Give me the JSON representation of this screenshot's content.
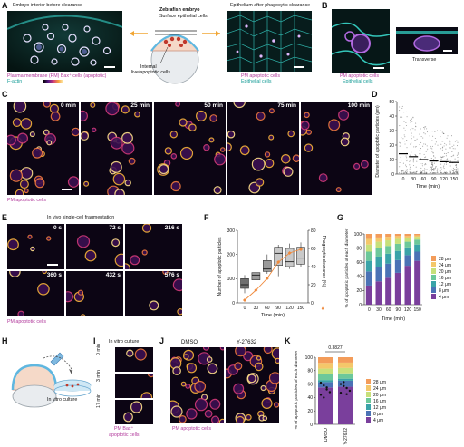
{
  "panels": {
    "A": {
      "label": "A",
      "left_title": "Embryo interior before clearance",
      "left_caption_1": "Plasma membrane (PM) Bax⁺ cells (apoptotic)",
      "left_caption_2": "F-actin",
      "center_title": "Zebrafish embryo",
      "surface_label": "Surface epithelial cells",
      "internal_label_1": "Internal",
      "internal_label_2": "live/apoptotic cells",
      "right_title": "Epithelium after phagocytic clearance",
      "right_caption_1": "PM apoptotic cells",
      "right_caption_2": "Epithelial cells"
    },
    "B": {
      "label": "B",
      "caption_1": "PM apoptotic cells",
      "caption_2": "Epithelial cells",
      "transverse_label": "Transverse"
    },
    "C": {
      "label": "C",
      "times": [
        "0 min",
        "25 min",
        "50 min",
        "75 min",
        "100 min"
      ],
      "caption": "PM apoptotic cells"
    },
    "D": {
      "label": "D"
    },
    "E": {
      "label": "E",
      "title": "In vivo single-cell fragmentation",
      "times": [
        "0 s",
        "72 s",
        "216 s",
        "360 s",
        "432 s",
        "576 s"
      ],
      "caption": "PM apoptotic cells"
    },
    "F": {
      "label": "F",
      "right_axis_marker": "♦"
    },
    "G": {
      "label": "G"
    },
    "H": {
      "label": "H",
      "caption": "In vitro culture"
    },
    "I": {
      "label": "I",
      "title": "In vitro culture",
      "times": [
        "0 min",
        "3 min",
        "17 min"
      ],
      "caption_1": "PM Bax⁺",
      "caption_2": "apoptotic cells"
    },
    "J": {
      "label": "J",
      "conditions": [
        "DMSO",
        "Y-27632"
      ],
      "caption": "PM apoptotic cells"
    },
    "K": {
      "label": "K",
      "pvalue": "0.3827"
    }
  },
  "chart_data": [
    {
      "panel": "D",
      "type": "scatter",
      "xlabel": "Time (min)",
      "ylabel": "Diameter of apoptotic particles (μm)",
      "x_ticks": [
        "0",
        "30",
        "60",
        "90",
        "120",
        "150"
      ],
      "y_ticks": [
        "0",
        "10",
        "20",
        "30",
        "40",
        "50"
      ],
      "ylim": [
        0,
        50
      ],
      "medians": [
        14,
        12,
        10,
        9,
        8.5,
        8
      ],
      "max_values": [
        47,
        40,
        33,
        30,
        30,
        26
      ]
    },
    {
      "panel": "F",
      "type": "box",
      "xlabel": "Time (min)",
      "ylabel": "Number of apoptotic particles",
      "ylabel_right": "Phagocytic clearance (%)",
      "x_ticks": [
        "0",
        "30",
        "60",
        "90",
        "120",
        "150"
      ],
      "y_ticks": [
        "0",
        "100",
        "200",
        "300"
      ],
      "y_ticks_right": [
        "0",
        "20",
        "40",
        "60",
        "80"
      ],
      "ylim": [
        0,
        300
      ],
      "ylim_right": [
        0,
        80
      ],
      "boxes": [
        {
          "min": 40,
          "q1": 60,
          "median": 75,
          "q3": 100,
          "max": 115
        },
        {
          "min": 85,
          "q1": 95,
          "median": 115,
          "q3": 125,
          "max": 150
        },
        {
          "min": 120,
          "q1": 130,
          "median": 140,
          "q3": 175,
          "max": 200
        },
        {
          "min": 110,
          "q1": 155,
          "median": 205,
          "q3": 230,
          "max": 240
        },
        {
          "min": 140,
          "q1": 150,
          "median": 170,
          "q3": 225,
          "max": 245
        },
        {
          "min": 150,
          "q1": 160,
          "median": 185,
          "q3": 230,
          "max": 250
        }
      ],
      "clearance_series": [
        3,
        14,
        27,
        45,
        55,
        59
      ]
    },
    {
      "panel": "G",
      "type": "bar",
      "stacked": true,
      "xlabel": "Time (min)",
      "ylabel": "% of apoptotic particles of each diameter",
      "categories": [
        "0",
        "30",
        "60",
        "90",
        "120",
        "150"
      ],
      "y_ticks": [
        "0",
        "20",
        "40",
        "60",
        "80",
        "100"
      ],
      "ylim": [
        0,
        100
      ],
      "legend": [
        "28 μm",
        "24 μm",
        "20 μm",
        "16 μm",
        "12 μm",
        "8 μm",
        "4 μm"
      ],
      "colors": [
        "#f39c5a",
        "#f4c76a",
        "#c7e07a",
        "#6cc89a",
        "#3aa3a8",
        "#4b72b5",
        "#7a3f9c"
      ],
      "series": [
        {
          "name": "4 μm",
          "values": [
            27,
            33,
            38,
            45,
            55,
            62
          ]
        },
        {
          "name": "8 μm",
          "values": [
            20,
            20,
            20,
            18,
            15,
            13
          ]
        },
        {
          "name": "12 μm",
          "values": [
            15,
            15,
            14,
            13,
            11,
            10
          ]
        },
        {
          "name": "16 μm",
          "values": [
            13,
            12,
            11,
            10,
            8,
            7
          ]
        },
        {
          "name": "20 μm",
          "values": [
            10,
            9,
            8,
            7,
            5,
            4
          ]
        },
        {
          "name": "24 μm",
          "values": [
            8,
            6,
            5,
            4,
            3,
            2
          ]
        },
        {
          "name": "28 μm",
          "values": [
            7,
            5,
            4,
            3,
            3,
            2
          ]
        }
      ]
    },
    {
      "panel": "K",
      "type": "bar",
      "stacked": true,
      "ylabel": "% of apoptotic particles of each diameter",
      "categories": [
        "DMSO",
        "Y-27632"
      ],
      "y_ticks": [
        "0",
        "20",
        "40",
        "60",
        "80",
        "100"
      ],
      "ylim": [
        0,
        100
      ],
      "legend": [
        "28 μm",
        "24 μm",
        "20 μm",
        "16 μm",
        "12 μm",
        "8 μm",
        "4 μm"
      ],
      "colors": [
        "#f39c5a",
        "#f4c76a",
        "#c7e07a",
        "#6cc89a",
        "#3aa3a8",
        "#4b72b5",
        "#7a3f9c"
      ],
      "series": [
        {
          "name": "4 μm",
          "values": [
            55,
            56
          ]
        },
        {
          "name": "8 μm",
          "values": [
            8,
            9
          ]
        },
        {
          "name": "12 μm",
          "values": [
            3,
            3
          ]
        }
      ],
      "dots": [
        [
          62,
          58,
          52,
          48,
          44,
          40,
          55
        ],
        [
          60,
          57,
          54,
          50,
          47,
          63,
          45
        ]
      ]
    }
  ]
}
